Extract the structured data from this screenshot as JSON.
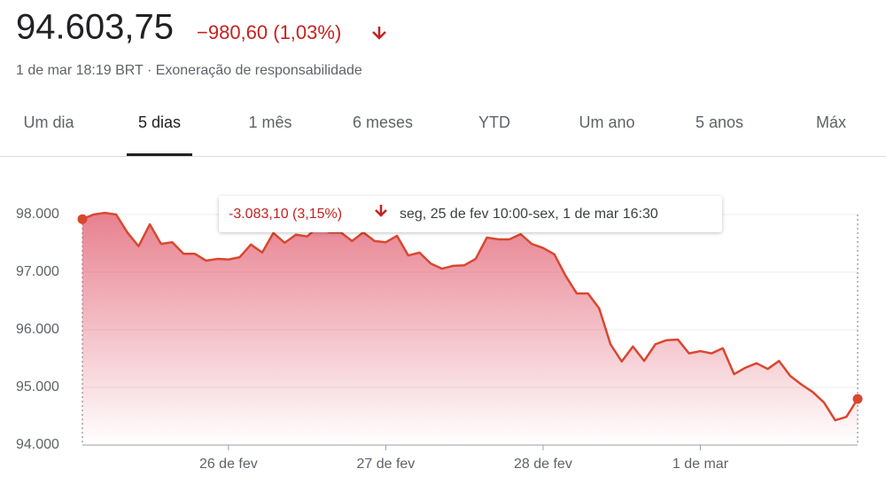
{
  "header": {
    "price": "94.603,75",
    "change": "−980,60 (1,03%)",
    "subtitle": "1 de mar 18:19 BRT · Exoneração de responsabilidade"
  },
  "tabs": [
    {
      "label": "Um dia"
    },
    {
      "label": "5 dias",
      "selected": true
    },
    {
      "label": "1 mês"
    },
    {
      "label": "6 meses"
    },
    {
      "label": "YTD"
    },
    {
      "label": "Um ano"
    },
    {
      "label": "5 anos"
    },
    {
      "label": "Máx"
    }
  ],
  "chart_data": {
    "type": "line",
    "tooltip": {
      "change": "-3.083,10 (3,15%)",
      "range": "seg, 25 de fev 10:00-sex, 1 de mar 16:30"
    },
    "categories": [
      null,
      null,
      null,
      null,
      null,
      null,
      null,
      null,
      null,
      null,
      null,
      null,
      null,
      "26 de fev",
      null,
      null,
      null,
      null,
      null,
      null,
      null,
      null,
      null,
      null,
      null,
      null,
      null,
      "27 de fev",
      null,
      null,
      null,
      null,
      null,
      null,
      null,
      null,
      null,
      null,
      null,
      null,
      null,
      "28 de fev",
      null,
      null,
      null,
      null,
      null,
      null,
      null,
      null,
      null,
      null,
      null,
      null,
      null,
      "1 de mar",
      null,
      null,
      null,
      null,
      null,
      null,
      null,
      null,
      null,
      null,
      null,
      null,
      null,
      null
    ],
    "series": [
      {
        "color": "#d9472f",
        "values": [
          97920,
          98000,
          98030,
          98000,
          97690,
          97450,
          97830,
          97490,
          97520,
          97320,
          97320,
          97200,
          97230,
          97220,
          97260,
          97480,
          97340,
          97680,
          97510,
          97650,
          97620,
          97790,
          97690,
          97690,
          97540,
          97690,
          97540,
          97520,
          97630,
          97290,
          97340,
          97150,
          97060,
          97110,
          97120,
          97230,
          97600,
          97570,
          97570,
          97660,
          97490,
          97420,
          97310,
          96940,
          96630,
          96630,
          96370,
          95750,
          95450,
          95710,
          95460,
          95750,
          95820,
          95830,
          95590,
          95630,
          95590,
          95680,
          95230,
          95340,
          95420,
          95320,
          95460,
          95200,
          95050,
          94920,
          94740,
          94430,
          94490,
          94800
        ]
      }
    ],
    "ylim": [
      94000,
      98000
    ],
    "yticks": [
      {
        "value": 94000,
        "label": "94.000"
      },
      {
        "value": 95000,
        "label": "95.000"
      },
      {
        "value": 96000,
        "label": "96.000"
      },
      {
        "value": 97000,
        "label": "97.000"
      },
      {
        "value": 98000,
        "label": "98.000"
      }
    ],
    "grid": true
  }
}
